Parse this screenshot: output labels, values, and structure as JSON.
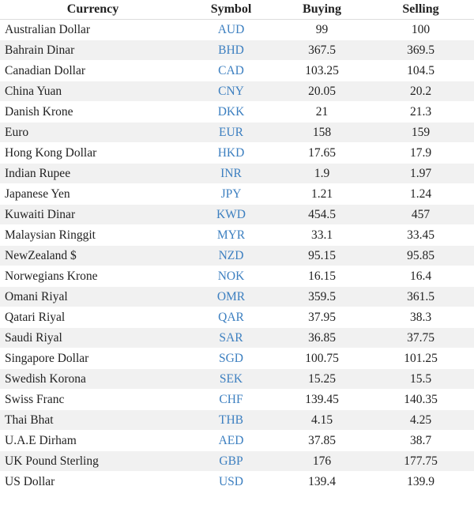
{
  "table": {
    "header": [
      "Currency",
      "Symbol",
      "Buying",
      "Selling"
    ],
    "rows": [
      [
        "Australian Dollar",
        "AUD",
        "99",
        "100"
      ],
      [
        "Bahrain Dinar",
        "BHD",
        "367.5",
        "369.5"
      ],
      [
        "Canadian Dollar",
        "CAD",
        "103.25",
        "104.5"
      ],
      [
        "China Yuan",
        "CNY",
        "20.05",
        "20.2"
      ],
      [
        "Danish Krone",
        "DKK",
        "21",
        "21.3"
      ],
      [
        "Euro",
        "EUR",
        "158",
        "159"
      ],
      [
        "Hong Kong Dollar",
        "HKD",
        "17.65",
        "17.9"
      ],
      [
        "Indian Rupee",
        "INR",
        "1.9",
        "1.97"
      ],
      [
        "Japanese Yen",
        "JPY",
        "1.21",
        "1.24"
      ],
      [
        "Kuwaiti Dinar",
        "KWD",
        "454.5",
        "457"
      ],
      [
        "Malaysian Ringgit",
        "MYR",
        "33.1",
        "33.45"
      ],
      [
        "NewZealand $",
        "NZD",
        "95.15",
        "95.85"
      ],
      [
        "Norwegians Krone",
        "NOK",
        "16.15",
        "16.4"
      ],
      [
        "Omani Riyal",
        "OMR",
        "359.5",
        "361.5"
      ],
      [
        "Qatari Riyal",
        "QAR",
        "37.95",
        "38.3"
      ],
      [
        "Saudi Riyal",
        "SAR",
        "36.85",
        "37.75"
      ],
      [
        "Singapore Dollar",
        "SGD",
        "100.75",
        "101.25"
      ],
      [
        "Swedish Korona",
        "SEK",
        "15.25",
        "15.5"
      ],
      [
        "Swiss Franc",
        "CHF",
        "139.45",
        "140.35"
      ],
      [
        "Thai Bhat",
        "THB",
        "4.15",
        "4.25"
      ],
      [
        "U.A.E Dirham",
        "AED",
        "37.85",
        "38.7"
      ],
      [
        "UK Pound Sterling",
        "GBP",
        "176",
        "177.75"
      ],
      [
        "US Dollar",
        "USD",
        "139.4",
        "139.9"
      ]
    ]
  }
}
